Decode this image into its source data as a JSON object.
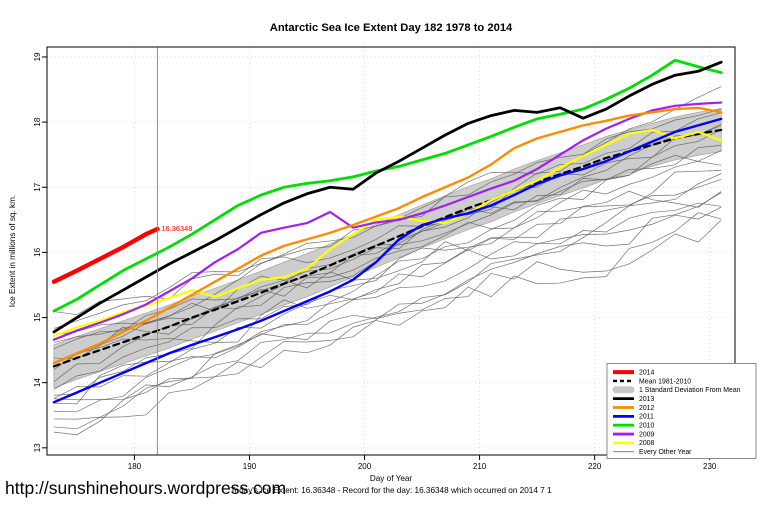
{
  "title": "Antarctic Sea Ice Extent Day 182 1978 to 2014",
  "axes": {
    "x_label": "Day of Year",
    "y_label": "Ice Extent in millions of sq. km.",
    "x_ticks": [
      180,
      190,
      200,
      210,
      220,
      230
    ],
    "y_ticks": [
      13,
      14,
      15,
      16,
      17,
      18,
      19
    ]
  },
  "annotation": {
    "text": "16.36348",
    "color": "#ff0000"
  },
  "footer": {
    "url": "http://sunshinehours.wordpress.com",
    "note": "Today's Ice Extent: 16.36348  - Record for the day: 16.36348 which occurred on 2014 7 1"
  },
  "legend": {
    "position": "bottom-right",
    "items": [
      {
        "label": "2014",
        "swatch": "line",
        "color": "#ff0000",
        "width": 4
      },
      {
        "label": "Mean 1981-2010",
        "swatch": "dashed",
        "color": "#000000",
        "width": 2.4
      },
      {
        "label": "1 Standard Deviation From Mean",
        "swatch": "band",
        "color": "#c8c8c8",
        "width": 7
      },
      {
        "label": "2013",
        "swatch": "line",
        "color": "#000000",
        "width": 2.8
      },
      {
        "label": "2012",
        "swatch": "line",
        "color": "#ff8c00",
        "width": 2.8
      },
      {
        "label": "2011",
        "swatch": "line",
        "color": "#0000ff",
        "width": 2.8
      },
      {
        "label": "2010",
        "swatch": "line",
        "color": "#00dd00",
        "width": 2.8
      },
      {
        "label": "2009",
        "swatch": "line",
        "color": "#a020f0",
        "width": 2.8
      },
      {
        "label": "2008",
        "swatch": "line",
        "color": "#ffff00",
        "width": 2.8
      },
      {
        "label": "Every Other Year",
        "swatch": "line",
        "color": "#5a5a5a",
        "width": 0.8
      }
    ]
  },
  "chart_data": {
    "type": "line",
    "title": "Antarctic Sea Ice Extent Day 182 1978 to 2014",
    "xlabel": "Day of Year",
    "ylabel": "Ice Extent in millions of sq. km.",
    "xlim": [
      172.4,
      232.2
    ],
    "ylim": [
      12.89,
      19.153
    ],
    "x_ticks": [
      180,
      190,
      200,
      210,
      220,
      230
    ],
    "y_ticks": [
      13,
      14,
      15,
      16,
      17,
      18,
      19
    ],
    "grid": "dotted",
    "grid_color": "#dcdcdc",
    "marker_line": {
      "day": 182,
      "value": 16.36348,
      "label": "16.36348",
      "color": "#909090"
    },
    "days": [
      173,
      175,
      177,
      179,
      181,
      183,
      185,
      187,
      189,
      191,
      193,
      195,
      197,
      199,
      201,
      203,
      205,
      207,
      209,
      211,
      213,
      215,
      217,
      219,
      221,
      223,
      225,
      227,
      229,
      231
    ],
    "band": {
      "name": "1 Standard Deviation From Mean",
      "based_on": "Mean 1981-2010",
      "halfwidth": 0.33,
      "fill": "#c6c6c6",
      "stroke": "#9a9a9a"
    },
    "series": [
      {
        "name": "Mean 1981-2010",
        "color": "#000000",
        "width": 2.2,
        "dash": "6 4.5",
        "values": [
          14.25,
          14.38,
          14.5,
          14.62,
          14.74,
          14.86,
          15.0,
          15.12,
          15.25,
          15.38,
          15.52,
          15.65,
          15.8,
          15.95,
          16.1,
          16.25,
          16.4,
          16.54,
          16.68,
          16.8,
          16.95,
          17.08,
          17.2,
          17.32,
          17.45,
          17.55,
          17.65,
          17.75,
          17.82,
          17.88
        ]
      },
      {
        "name": "2008",
        "color": "#ffff00",
        "width": 2.2,
        "values": [
          14.72,
          14.85,
          14.95,
          15.08,
          15.18,
          15.3,
          15.42,
          15.32,
          15.45,
          15.58,
          15.62,
          15.75,
          16.05,
          16.28,
          16.5,
          16.55,
          16.48,
          16.45,
          16.6,
          16.8,
          16.95,
          17.1,
          17.3,
          17.48,
          17.65,
          17.82,
          17.88,
          17.75,
          17.85,
          17.72
        ]
      },
      {
        "name": "2009",
        "color": "#a020f0",
        "width": 2.2,
        "values": [
          14.66,
          14.8,
          14.92,
          15.05,
          15.2,
          15.4,
          15.6,
          15.85,
          16.05,
          16.3,
          16.38,
          16.45,
          16.62,
          16.38,
          16.46,
          16.5,
          16.6,
          16.72,
          16.85,
          16.98,
          17.1,
          17.28,
          17.5,
          17.72,
          17.9,
          18.05,
          18.18,
          18.25,
          18.28,
          18.3
        ]
      },
      {
        "name": "2010",
        "color": "#00dd00",
        "width": 2.8,
        "values": [
          15.1,
          15.28,
          15.5,
          15.72,
          15.9,
          16.08,
          16.28,
          16.5,
          16.72,
          16.88,
          17.0,
          17.06,
          17.1,
          17.16,
          17.25,
          17.32,
          17.42,
          17.52,
          17.65,
          17.78,
          17.92,
          18.05,
          18.12,
          18.2,
          18.35,
          18.52,
          18.72,
          18.95,
          18.85,
          18.76
        ]
      },
      {
        "name": "2011",
        "color": "#0000ff",
        "width": 2.4,
        "values": [
          13.7,
          13.85,
          14.0,
          14.15,
          14.3,
          14.45,
          14.58,
          14.7,
          14.82,
          14.95,
          15.1,
          15.25,
          15.4,
          15.58,
          15.85,
          16.2,
          16.42,
          16.52,
          16.6,
          16.72,
          16.88,
          17.05,
          17.18,
          17.28,
          17.4,
          17.55,
          17.7,
          17.85,
          17.95,
          18.05
        ]
      },
      {
        "name": "2012",
        "color": "#ff8c00",
        "width": 2.4,
        "values": [
          14.3,
          14.45,
          14.6,
          14.78,
          14.95,
          15.15,
          15.35,
          15.55,
          15.75,
          15.95,
          16.1,
          16.2,
          16.3,
          16.42,
          16.55,
          16.68,
          16.85,
          17.0,
          17.15,
          17.35,
          17.6,
          17.75,
          17.85,
          17.95,
          18.02,
          18.1,
          18.15,
          18.2,
          18.22,
          18.15
        ]
      },
      {
        "name": "2013",
        "color": "#000000",
        "width": 2.8,
        "values": [
          14.78,
          15.0,
          15.22,
          15.42,
          15.62,
          15.82,
          16.0,
          16.18,
          16.38,
          16.58,
          16.76,
          16.9,
          17.0,
          16.97,
          17.22,
          17.4,
          17.6,
          17.8,
          17.98,
          18.1,
          18.18,
          18.15,
          18.22,
          18.06,
          18.2,
          18.4,
          18.58,
          18.72,
          18.78,
          18.92
        ]
      },
      {
        "name": "2014",
        "color": "#ff0000",
        "width": 4.4,
        "days": [
          173,
          175,
          177,
          179,
          181,
          182
        ],
        "values": [
          15.55,
          15.72,
          15.9,
          16.08,
          16.28,
          16.36
        ]
      }
    ],
    "every_other_year": {
      "name": "Every Other Year",
      "color": "#5a5a5a",
      "width": 0.7,
      "lines": [
        {
          "start": 13.2,
          "end": 17.2,
          "amp": 0.16,
          "seed": 1
        },
        {
          "start": 13.35,
          "end": 16.5,
          "amp": 0.2,
          "seed": 2
        },
        {
          "start": 13.5,
          "end": 17.8,
          "amp": 0.14,
          "seed": 3
        },
        {
          "start": 13.6,
          "end": 16.9,
          "amp": 0.18,
          "seed": 4
        },
        {
          "start": 13.7,
          "end": 17.4,
          "amp": 0.15,
          "seed": 5
        },
        {
          "start": 13.8,
          "end": 18.3,
          "amp": 0.13,
          "seed": 6
        },
        {
          "start": 13.9,
          "end": 16.4,
          "amp": 0.22,
          "seed": 7
        },
        {
          "start": 14.0,
          "end": 17.6,
          "amp": 0.15,
          "seed": 8
        },
        {
          "start": 14.1,
          "end": 18.0,
          "amp": 0.14,
          "seed": 9
        },
        {
          "start": 14.2,
          "end": 16.8,
          "amp": 0.19,
          "seed": 10
        },
        {
          "start": 14.3,
          "end": 17.9,
          "amp": 0.13,
          "seed": 11
        },
        {
          "start": 14.45,
          "end": 17.3,
          "amp": 0.17,
          "seed": 12
        },
        {
          "start": 14.6,
          "end": 18.4,
          "amp": 0.12,
          "seed": 13
        },
        {
          "start": 14.75,
          "end": 17.0,
          "amp": 0.2,
          "seed": 14
        },
        {
          "start": 14.9,
          "end": 18.2,
          "amp": 0.13,
          "seed": 15
        },
        {
          "start": 15.05,
          "end": 17.5,
          "amp": 0.16,
          "seed": 16
        },
        {
          "start": 13.25,
          "end": 16.9,
          "amp": 0.2,
          "seed": 17
        },
        {
          "start": 14.55,
          "end": 17.7,
          "amp": 0.15,
          "seed": 18
        }
      ]
    }
  }
}
